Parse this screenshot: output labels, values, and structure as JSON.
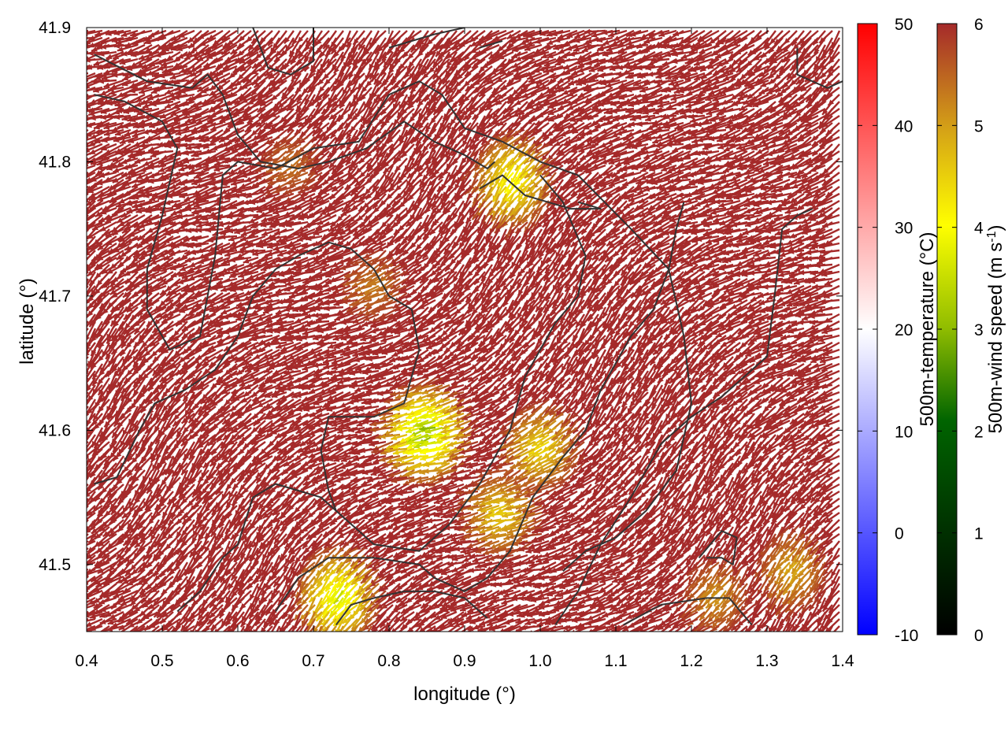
{
  "chart_data": {
    "type": "vector-field",
    "xlabel": "longitude (°)",
    "ylabel": "latitude (°)",
    "xlim": [
      0.4,
      1.4
    ],
    "ylim": [
      41.45,
      41.9
    ],
    "xticks": [
      "0.4",
      "0.5",
      "0.6",
      "0.7",
      "0.8",
      "0.9",
      "1.0",
      "1.1",
      "1.2",
      "1.3",
      "1.4"
    ],
    "yticks": [
      "41.5",
      "41.6",
      "41.7",
      "41.8",
      "41.9"
    ],
    "xtick_values": [
      0.4,
      0.5,
      0.6,
      0.7,
      0.8,
      0.9,
      1.0,
      1.1,
      1.2,
      1.3,
      1.4
    ],
    "ytick_values": [
      41.5,
      41.6,
      41.7,
      41.8,
      41.9
    ],
    "colorbars": [
      {
        "label": "500m-temperature (°C)",
        "range": [
          -10,
          50
        ],
        "ticks": [
          "50",
          "40",
          "30",
          "20",
          "10",
          "0",
          "-10"
        ],
        "tick_values": [
          50,
          40,
          30,
          20,
          10,
          0,
          -10
        ],
        "colors": [
          "#0000ff",
          "#ffffff",
          "#ff0000"
        ]
      },
      {
        "label": "500m-wind speed (m s",
        "label_sup": "-1",
        "label_close": ")",
        "range": [
          0,
          6
        ],
        "ticks": [
          "6",
          "5",
          "4",
          "3",
          "2",
          "1",
          "0"
        ],
        "tick_values": [
          6,
          5,
          4,
          3,
          2,
          1,
          0
        ],
        "colors": [
          "#000000",
          "#006400",
          "#ffff00",
          "#d4a017",
          "#a52a2a"
        ]
      }
    ],
    "field_color_dominant": "#a52a2a",
    "low_wind_regions": [
      {
        "lon": 0.97,
        "lat": 41.79,
        "min_speed": 3.8
      },
      {
        "lon": 0.86,
        "lat": 41.6,
        "min_speed": 2.8
      },
      {
        "lon": 1.01,
        "lat": 41.59,
        "min_speed": 4.3
      },
      {
        "lon": 0.96,
        "lat": 41.54,
        "min_speed": 4.4
      },
      {
        "lon": 0.74,
        "lat": 41.48,
        "min_speed": 3.4
      },
      {
        "lon": 1.34,
        "lat": 41.5,
        "min_speed": 4.8
      },
      {
        "lon": 0.79,
        "lat": 41.71,
        "min_speed": 5.2
      },
      {
        "lon": 0.68,
        "lat": 41.8,
        "min_speed": 5.3
      },
      {
        "lon": 1.24,
        "lat": 41.48,
        "min_speed": 5.0
      }
    ],
    "contour_color": "#333333",
    "contours": [
      [
        [
          0.41,
          41.88
        ],
        [
          0.48,
          41.86
        ],
        [
          0.54,
          41.855
        ],
        [
          0.56,
          41.865
        ],
        [
          0.58,
          41.85
        ],
        [
          0.6,
          41.82
        ],
        [
          0.63,
          41.8
        ],
        [
          0.68,
          41.795
        ],
        [
          0.72,
          41.8
        ],
        [
          0.77,
          41.81
        ],
        [
          0.82,
          41.83
        ],
        [
          0.86,
          41.815
        ],
        [
          0.9,
          41.805
        ],
        [
          0.93,
          41.795
        ],
        [
          0.94,
          41.8
        ]
      ],
      [
        [
          0.41,
          41.85
        ],
        [
          0.45,
          41.845
        ],
        [
          0.5,
          41.83
        ],
        [
          0.52,
          41.81
        ],
        [
          0.5,
          41.76
        ],
        [
          0.48,
          41.72
        ],
        [
          0.48,
          41.69
        ],
        [
          0.51,
          41.66
        ],
        [
          0.55,
          41.67
        ],
        [
          0.57,
          41.73
        ],
        [
          0.58,
          41.79
        ],
        [
          0.6,
          41.8
        ],
        [
          0.65,
          41.795
        ],
        [
          0.7,
          41.81
        ],
        [
          0.76,
          41.815
        ],
        [
          0.8,
          41.85
        ],
        [
          0.84,
          41.86
        ],
        [
          0.87,
          41.85
        ],
        [
          0.9,
          41.825
        ],
        [
          0.95,
          41.815
        ],
        [
          1.0,
          41.8
        ],
        [
          1.05,
          41.79
        ],
        [
          1.12,
          41.75
        ],
        [
          1.17,
          41.72
        ],
        [
          1.19,
          41.67
        ],
        [
          1.2,
          41.62
        ],
        [
          1.18,
          41.57
        ],
        [
          1.14,
          41.54
        ],
        [
          1.1,
          41.52
        ],
        [
          1.06,
          41.51
        ],
        [
          1.03,
          41.495
        ]
      ],
      [
        [
          0.92,
          41.78
        ],
        [
          0.95,
          41.79
        ],
        [
          0.98,
          41.775
        ],
        [
          1.04,
          41.765
        ],
        [
          1.08,
          41.765
        ],
        [
          1.05,
          41.77
        ]
      ],
      [
        [
          0.41,
          41.56
        ],
        [
          0.44,
          41.565
        ],
        [
          0.47,
          41.6
        ],
        [
          0.49,
          41.62
        ],
        [
          0.53,
          41.63
        ],
        [
          0.57,
          41.645
        ],
        [
          0.6,
          41.67
        ],
        [
          0.62,
          41.7
        ],
        [
          0.65,
          41.72
        ],
        [
          0.68,
          41.73
        ],
        [
          0.72,
          41.74
        ],
        [
          0.75,
          41.735
        ],
        [
          0.78,
          41.72
        ],
        [
          0.8,
          41.7
        ],
        [
          0.83,
          41.69
        ],
        [
          0.84,
          41.66
        ],
        [
          0.82,
          41.62
        ],
        [
          0.78,
          41.61
        ],
        [
          0.72,
          41.61
        ],
        [
          0.71,
          41.585
        ],
        [
          0.72,
          41.555
        ],
        [
          0.73,
          41.54
        ],
        [
          0.78,
          41.515
        ],
        [
          0.84,
          41.51
        ],
        [
          0.88,
          41.53
        ],
        [
          0.92,
          41.56
        ],
        [
          0.96,
          41.6
        ],
        [
          0.98,
          41.64
        ],
        [
          1.02,
          41.68
        ],
        [
          1.05,
          41.7
        ],
        [
          1.06,
          41.73
        ],
        [
          1.03,
          41.77
        ],
        [
          1.0,
          41.79
        ]
      ],
      [
        [
          0.52,
          41.465
        ],
        [
          0.55,
          41.48
        ],
        [
          0.58,
          41.505
        ],
        [
          0.6,
          41.515
        ],
        [
          0.62,
          41.55
        ],
        [
          0.65,
          41.56
        ],
        [
          0.68,
          41.555
        ],
        [
          0.71,
          41.55
        ],
        [
          0.73,
          41.54
        ]
      ],
      [
        [
          0.65,
          41.465
        ],
        [
          0.68,
          41.49
        ],
        [
          0.72,
          41.505
        ],
        [
          0.78,
          41.505
        ],
        [
          0.84,
          41.5
        ],
        [
          0.86,
          41.49
        ],
        [
          0.9,
          41.48
        ],
        [
          0.93,
          41.49
        ],
        [
          0.96,
          41.51
        ],
        [
          0.99,
          41.55
        ],
        [
          1.03,
          41.58
        ],
        [
          1.06,
          41.6
        ],
        [
          1.08,
          41.63
        ],
        [
          1.1,
          41.65
        ],
        [
          1.12,
          41.67
        ],
        [
          1.15,
          41.69
        ],
        [
          1.17,
          41.72
        ],
        [
          1.18,
          41.75
        ],
        [
          1.19,
          41.77
        ]
      ],
      [
        [
          1.02,
          41.455
        ],
        [
          1.05,
          41.48
        ],
        [
          1.08,
          41.515
        ],
        [
          1.12,
          41.55
        ],
        [
          1.16,
          41.59
        ],
        [
          1.2,
          41.61
        ],
        [
          1.24,
          41.625
        ],
        [
          1.27,
          41.64
        ],
        [
          1.3,
          41.655
        ],
        [
          1.31,
          41.7
        ],
        [
          1.32,
          41.75
        ],
        [
          1.34,
          41.76
        ],
        [
          1.36,
          41.765
        ]
      ],
      [
        [
          1.21,
          41.505
        ],
        [
          1.24,
          41.525
        ],
        [
          1.26,
          41.52
        ],
        [
          1.255,
          41.5
        ],
        [
          1.24,
          41.505
        ],
        [
          1.22,
          41.505
        ]
      ],
      [
        [
          1.11,
          41.455
        ],
        [
          1.16,
          41.47
        ],
        [
          1.22,
          41.475
        ],
        [
          1.25,
          41.475
        ],
        [
          1.28,
          41.455
        ]
      ],
      [
        [
          0.73,
          41.455
        ],
        [
          0.75,
          41.47
        ],
        [
          0.78,
          41.475
        ],
        [
          0.82,
          41.48
        ],
        [
          0.86,
          41.48
        ],
        [
          0.9,
          41.475
        ],
        [
          0.93,
          41.46
        ]
      ],
      [
        [
          0.62,
          41.9
        ],
        [
          0.64,
          41.87
        ],
        [
          0.67,
          41.865
        ],
        [
          0.7,
          41.875
        ],
        [
          0.7,
          41.9
        ]
      ],
      [
        [
          0.8,
          41.885
        ],
        [
          0.86,
          41.895
        ],
        [
          0.9,
          41.9
        ]
      ],
      [
        [
          1.34,
          41.885
        ],
        [
          1.34,
          41.865
        ],
        [
          1.38,
          41.855
        ],
        [
          1.4,
          41.86
        ]
      ],
      [
        [
          0.92,
          41.885
        ],
        [
          0.95,
          41.89
        ]
      ]
    ]
  }
}
